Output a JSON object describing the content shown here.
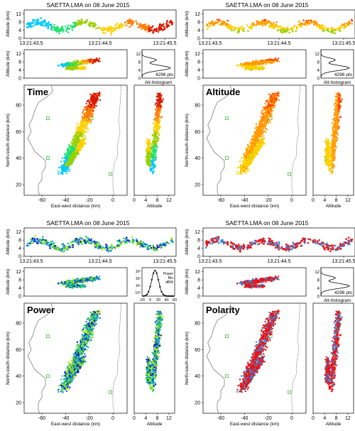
{
  "chart_data": [
    {
      "type": "scatter",
      "panel_label": "Time",
      "title": "SAETTA LMA on 08 June 2015",
      "timeline": {
        "ylabel": "Altitude (km)",
        "yticks": [
          "0",
          "4",
          "8",
          "12"
        ],
        "xticks": [
          "13:21:43.5",
          "13:21:44.5",
          "13:21:45.5"
        ],
        "ylim": [
          0,
          14
        ]
      },
      "ew_alt": {
        "ylabel": "Altitude (km)",
        "yticks": [
          "0",
          "4",
          "8",
          "12"
        ],
        "xlim": [
          -75,
          12
        ],
        "ylim": [
          0,
          14
        ]
      },
      "histogram": {
        "label": "Alt-histogram",
        "points_text": "4296 pts",
        "yticks": [
          "0",
          "4",
          "8",
          "12"
        ]
      },
      "plan": {
        "xlabel": "East-west distance (km)",
        "ylabel": "North-south distance (km)",
        "xticks": [
          "-60",
          "-40",
          "-20",
          "0"
        ],
        "yticks": [
          "20",
          "40",
          "60",
          "80"
        ],
        "xlim": [
          -75,
          12
        ],
        "ylim": [
          12,
          95
        ]
      },
      "ns_alt": {
        "xlabel": "Altitude",
        "xticks": [
          "0",
          "4",
          "8",
          "12"
        ],
        "xlim": [
          0,
          14
        ]
      },
      "color_key": [
        "#00c8ff",
        "#20e070",
        "#9ad000",
        "#ffd000",
        "#ff7b00",
        "#d81a00"
      ]
    },
    {
      "type": "scatter",
      "panel_label": "Altitude",
      "title": "SAETTA LMA on 08 June 2015",
      "timeline": {
        "ylabel": "Altitude (km)",
        "yticks": [
          "0",
          "4",
          "8",
          "12"
        ],
        "xticks": [
          "13:21:43.5",
          "13:21:44.5",
          "13:21:45.5"
        ],
        "ylim": [
          0,
          14
        ]
      },
      "ew_alt": {
        "ylabel": "Altitude (km)",
        "yticks": [
          "0",
          "4",
          "8",
          "12"
        ],
        "xlim": [
          -75,
          12
        ],
        "ylim": [
          0,
          14
        ]
      },
      "histogram": {
        "label": "Alt-histogram",
        "points_text": "4296 pts",
        "yticks": [
          "0",
          "4",
          "8",
          "12"
        ]
      },
      "plan": {
        "xlabel": "East-west distance (km)",
        "ylabel": "North-south distance (km)",
        "xticks": [
          "-60",
          "-40",
          "-20",
          "0"
        ],
        "yticks": [
          "20",
          "40",
          "60",
          "80"
        ],
        "xlim": [
          -75,
          12
        ],
        "ylim": [
          12,
          95
        ]
      },
      "ns_alt": {
        "xlabel": "Altitude",
        "xticks": [
          "0",
          "4",
          "8",
          "12"
        ],
        "xlim": [
          0,
          14
        ]
      },
      "color_key": [
        "#20c040",
        "#9ad000",
        "#ffd000",
        "#ff9a00",
        "#ff4500",
        "#d81a00"
      ]
    },
    {
      "type": "scatter",
      "panel_label": "Power",
      "title": "SAETTA LMA on 08 June 2015",
      "timeline": {
        "ylabel": "Altitude (km)",
        "yticks": [
          "0",
          "4",
          "8",
          "12"
        ],
        "xticks": [
          "13:21:43.5",
          "13:21:44.5",
          "13:21:45.5"
        ],
        "ylim": [
          0,
          14
        ]
      },
      "ew_alt": {
        "ylabel": "Altitude (km)",
        "yticks": [
          "0",
          "4",
          "8",
          "12"
        ],
        "xlim": [
          -75,
          12
        ],
        "ylim": [
          0,
          14
        ]
      },
      "histogram": {
        "legend": [
          "Power",
          "Bin",
          "dBW"
        ],
        "xticks": [
          "-20",
          "0",
          "20",
          "40",
          "60"
        ],
        "yticks": [
          "10³",
          "10²",
          "10¹",
          "10⁰"
        ]
      },
      "plan": {
        "xlabel": "East-west distance (km)",
        "ylabel": "North-south distance (km)",
        "xticks": [
          "-60",
          "-40",
          "-20",
          "0"
        ],
        "yticks": [
          "20",
          "40",
          "60",
          "80"
        ],
        "xlim": [
          -75,
          12
        ],
        "ylim": [
          12,
          95
        ]
      },
      "ns_alt": {
        "xlabel": "Altitude",
        "xticks": [
          "0",
          "4",
          "8",
          "12"
        ],
        "xlim": [
          0,
          14
        ]
      },
      "color_key": [
        "#0a1fb0",
        "#1a5fe0",
        "#00b0d0",
        "#20d070",
        "#70e030",
        "#b8f000"
      ]
    },
    {
      "type": "scatter",
      "panel_label": "Polarity",
      "title": "SAETTA LMA on 08 June 2015",
      "timeline": {
        "ylabel": "Altitude (km)",
        "yticks": [
          "0",
          "4",
          "8",
          "12"
        ],
        "xticks": [
          "13:21:43.5",
          "13:21:44.5",
          "13:21:45.5"
        ],
        "ylim": [
          0,
          14
        ]
      },
      "ew_alt": {
        "ylabel": "Altitude (km)",
        "yticks": [
          "0",
          "4",
          "8",
          "12"
        ],
        "xlim": [
          -75,
          12
        ],
        "ylim": [
          0,
          14
        ]
      },
      "histogram": {
        "label": "Alt-histogram",
        "points_text": "4296 pts",
        "yticks": [
          "0",
          "4",
          "8",
          "12"
        ]
      },
      "plan": {
        "xlabel": "East-west distance (km)",
        "ylabel": "North-south distance (km)",
        "xticks": [
          "-60",
          "-40",
          "-20",
          "0"
        ],
        "yticks": [
          "20",
          "40",
          "60",
          "80"
        ],
        "xlim": [
          -75,
          12
        ],
        "ylim": [
          12,
          95
        ]
      },
      "ns_alt": {
        "xlabel": "Altitude",
        "xticks": [
          "0",
          "4",
          "8",
          "12"
        ],
        "xlim": [
          0,
          14
        ]
      },
      "color_key": [
        "#ee1111",
        "#ee1111",
        "#ee1111",
        "#2a8fe8",
        "#ee1111",
        "#2a8fe8"
      ]
    }
  ]
}
